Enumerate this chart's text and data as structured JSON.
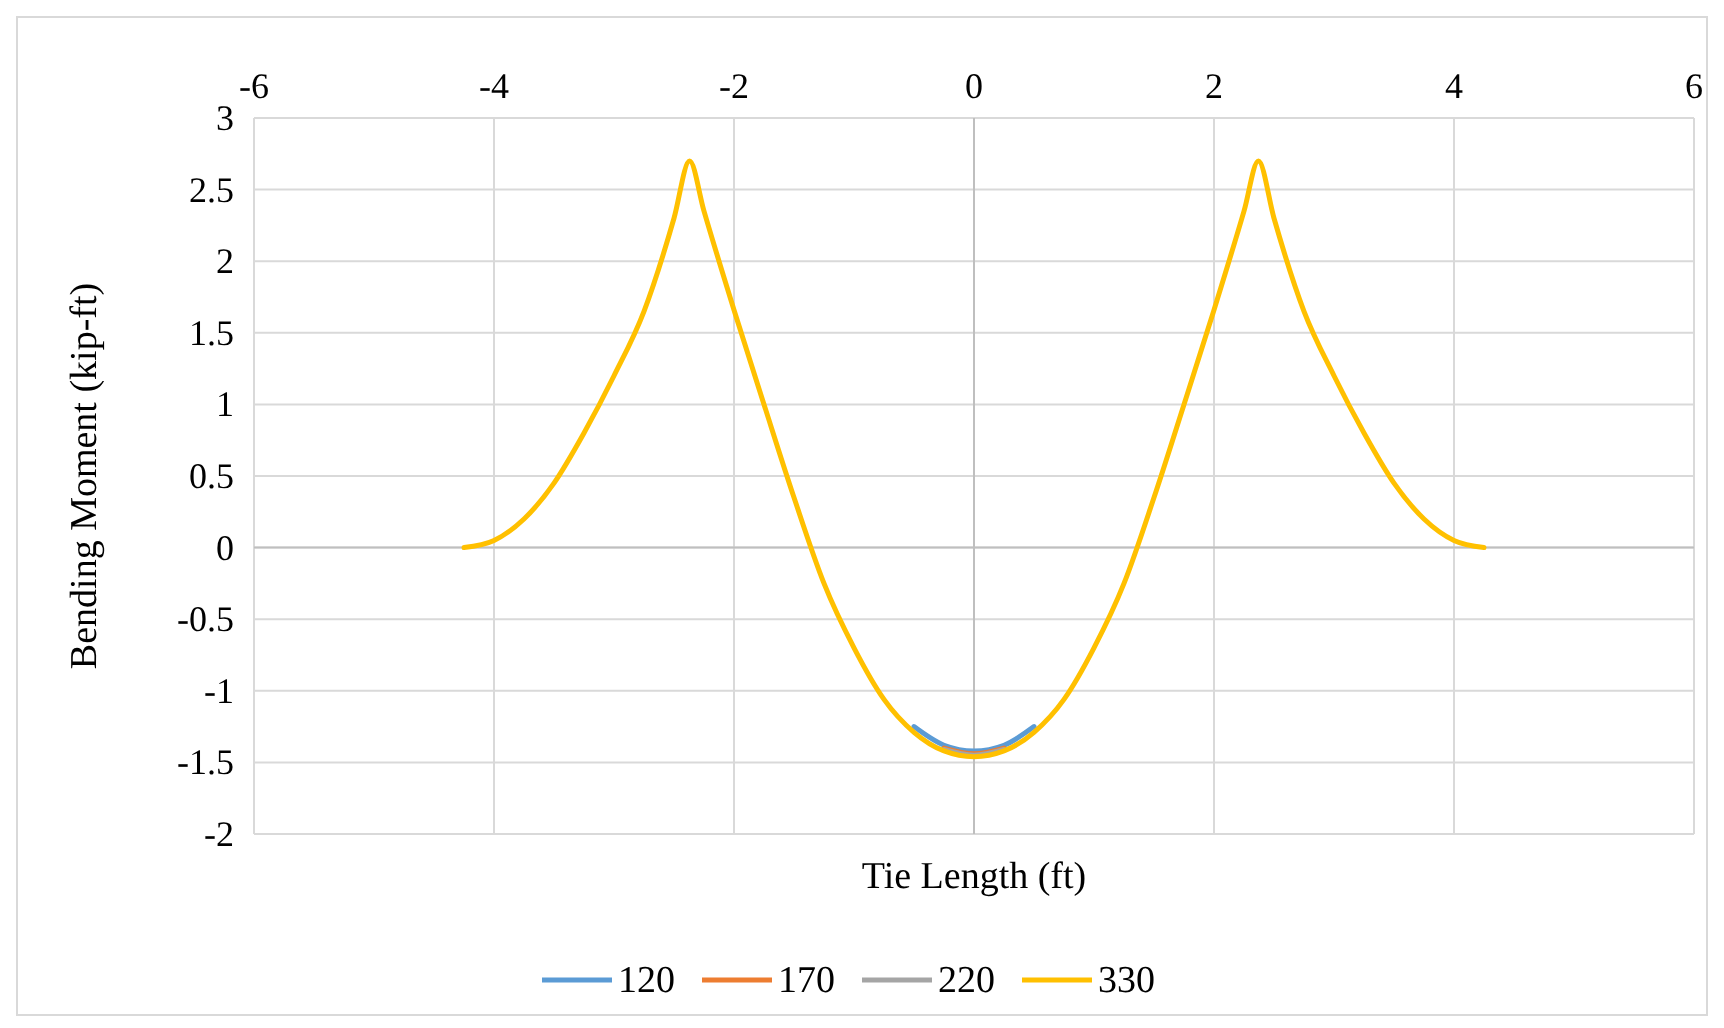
{
  "chart_data": {
    "type": "line",
    "xlabel": "Tie Length (ft)",
    "ylabel": "Bending Moment (kip-ft)",
    "x": [
      -4.25,
      -4.0,
      -3.75,
      -3.5,
      -3.25,
      -3.0,
      -2.75,
      -2.5,
      -2.37,
      -2.25,
      -2.0,
      -1.75,
      -1.5,
      -1.25,
      -1.0,
      -0.75,
      -0.5,
      -0.25,
      0,
      0.25,
      0.5,
      0.75,
      1.0,
      1.25,
      1.5,
      1.75,
      2.0,
      2.25,
      2.37,
      2.5,
      2.75,
      3.0,
      3.25,
      3.5,
      3.75,
      4.0,
      4.25
    ],
    "series": [
      {
        "name": "120",
        "color": "#5b9bd5",
        "values": [
          null,
          null,
          null,
          null,
          null,
          null,
          null,
          null,
          null,
          null,
          null,
          null,
          null,
          null,
          null,
          null,
          -1.25,
          -1.38,
          -1.42,
          -1.38,
          -1.25,
          null,
          null,
          null,
          null,
          null,
          null,
          null,
          null,
          null,
          null,
          null,
          null,
          null,
          null,
          null,
          null
        ]
      },
      {
        "name": "170",
        "color": "#ed7d31",
        "values": [
          null,
          null,
          null,
          null,
          null,
          null,
          null,
          null,
          null,
          null,
          null,
          null,
          null,
          null,
          null,
          null,
          null,
          -1.4,
          -1.44,
          -1.4,
          null,
          null,
          null,
          null,
          null,
          null,
          null,
          null,
          null,
          null,
          null,
          null,
          null,
          null,
          null,
          null,
          null
        ]
      },
      {
        "name": "220",
        "color": "#a5a5a5",
        "values": [
          null,
          null,
          null,
          null,
          null,
          null,
          null,
          null,
          null,
          null,
          null,
          null,
          null,
          null,
          null,
          null,
          null,
          -1.41,
          -1.45,
          -1.41,
          null,
          null,
          null,
          null,
          null,
          null,
          null,
          null,
          null,
          null,
          null,
          null,
          null,
          null,
          null,
          null,
          null
        ]
      },
      {
        "name": "330",
        "color": "#ffc000",
        "values": [
          0,
          0.05,
          0.2,
          0.45,
          0.8,
          1.2,
          1.65,
          2.3,
          2.7,
          2.35,
          1.66,
          1.0,
          0.35,
          -0.25,
          -0.7,
          -1.06,
          -1.29,
          -1.42,
          -1.46,
          -1.42,
          -1.29,
          -1.06,
          -0.7,
          -0.25,
          0.35,
          1.0,
          1.66,
          2.35,
          2.7,
          2.3,
          1.65,
          1.2,
          0.8,
          0.45,
          0.2,
          0.05,
          0
        ]
      }
    ],
    "xlim": [
      -6,
      6
    ],
    "xticks": [
      -6,
      -4,
      -2,
      0,
      2,
      4,
      6
    ],
    "ylim": [
      -2,
      3
    ],
    "yticks": [
      -2,
      -1.5,
      -1,
      -0.5,
      0,
      0.5,
      1,
      1.5,
      2,
      2.5,
      3
    ],
    "grid": true,
    "legend": "bottom",
    "marker": "none",
    "line_style": "solid"
  }
}
